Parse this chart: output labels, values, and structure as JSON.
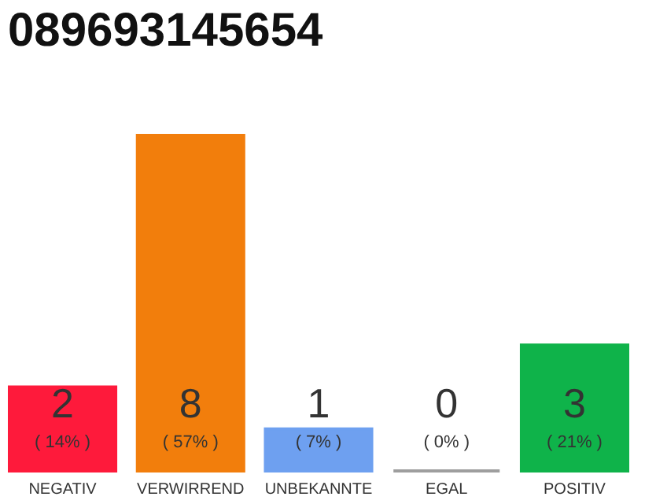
{
  "chart_data": {
    "type": "bar",
    "title": "089693145654",
    "categories": [
      "NEGATIV",
      "VERWIRREND",
      "UNBEKANNTE",
      "EGAL",
      "POSITIV"
    ],
    "values": [
      2,
      8,
      1,
      0,
      3
    ],
    "colors": [
      "#fe1a3b",
      "#f27e0c",
      "#6ea0f0",
      "#9e9e9e",
      "#0fb34a"
    ],
    "data_labels": true,
    "annotations": [
      "( 14% )",
      "( 57% )",
      "( 7% )",
      "( 0% )",
      "( 21% )"
    ]
  }
}
